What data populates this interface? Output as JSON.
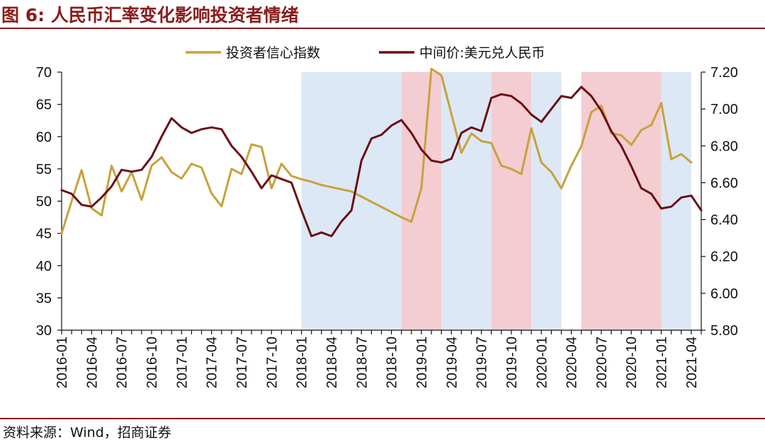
{
  "header": {
    "title": "图 6:  人民币汇率变化影响投资者情绪"
  },
  "footer": {
    "source": "资料来源：Wind，招商证券"
  },
  "chart_data": {
    "type": "line",
    "left_axis": {
      "ylim": [
        30,
        70
      ],
      "ticks": [
        "30",
        "35",
        "40",
        "45",
        "50",
        "55",
        "60",
        "65",
        "70"
      ]
    },
    "right_axis": {
      "ylim": [
        5.8,
        7.2
      ],
      "ticks": [
        "5.80",
        "6.00",
        "6.20",
        "6.40",
        "6.60",
        "6.80",
        "7.00",
        "7.20"
      ]
    },
    "x_axis": {
      "range": [
        "2016-01",
        "2021-05"
      ],
      "tick_labels": [
        "2016-01",
        "2016-04",
        "2016-07",
        "2016-10",
        "2017-01",
        "2017-04",
        "2017-07",
        "2017-10",
        "2018-01",
        "2018-04",
        "2018-07",
        "2018-10",
        "2019-01",
        "2019-04",
        "2019-07",
        "2019-10",
        "2020-01",
        "2020-04",
        "2020-07",
        "2020-10",
        "2021-01",
        "2021-04"
      ]
    },
    "legend": {
      "placement": "top-center"
    },
    "colors": {
      "sentiment": "#C9A13C",
      "fx": "#6B0E14",
      "blue_band": "#DCE8F5",
      "red_band": "#F3CDD2",
      "axis": "#111111"
    },
    "shaded_periods": [
      {
        "start": "2018-01",
        "end": "2018-11",
        "color": "blue"
      },
      {
        "start": "2018-11",
        "end": "2019-03",
        "color": "red"
      },
      {
        "start": "2019-03",
        "end": "2019-08",
        "color": "blue"
      },
      {
        "start": "2019-08",
        "end": "2019-12",
        "color": "red"
      },
      {
        "start": "2019-12",
        "end": "2020-03",
        "color": "blue"
      },
      {
        "start": "2020-05",
        "end": "2021-01",
        "color": "red"
      },
      {
        "start": "2021-01",
        "end": "2021-04",
        "color": "blue"
      }
    ],
    "series": [
      {
        "name": "投资者信心指数",
        "axis": "left",
        "points": [
          [
            "2016-01",
            45
          ],
          [
            "2016-02",
            50
          ],
          [
            "2016-03",
            54.8
          ],
          [
            "2016-04",
            48.9
          ],
          [
            "2016-05",
            47.8
          ],
          [
            "2016-06",
            55.5
          ],
          [
            "2016-07",
            51.5
          ],
          [
            "2016-08",
            54.5
          ],
          [
            "2016-09",
            50.2
          ],
          [
            "2016-10",
            55.5
          ],
          [
            "2016-11",
            56.8
          ],
          [
            "2016-12",
            54.5
          ],
          [
            "2017-01",
            53.5
          ],
          [
            "2017-02",
            55.8
          ],
          [
            "2017-03",
            55.2
          ],
          [
            "2017-04",
            51.2
          ],
          [
            "2017-05",
            49.2
          ],
          [
            "2017-06",
            55
          ],
          [
            "2017-07",
            54.2
          ],
          [
            "2017-08",
            58.8
          ],
          [
            "2017-09",
            58.4
          ],
          [
            "2017-10",
            52
          ],
          [
            "2017-11",
            55.8
          ],
          [
            "2017-12",
            53.9
          ],
          [
            "2018-01",
            53.4
          ],
          [
            "2018-02",
            53
          ],
          [
            "2018-03",
            52.5
          ],
          [
            "2018-06",
            51.5
          ],
          [
            "2018-11",
            47.5
          ],
          [
            "2018-12",
            46.8
          ],
          [
            "2019-01",
            52
          ],
          [
            "2019-02",
            70.5
          ],
          [
            "2019-03",
            69.5
          ],
          [
            "2019-05",
            57.5
          ],
          [
            "2019-06",
            60.5
          ],
          [
            "2019-07",
            59.3
          ],
          [
            "2019-08",
            59
          ],
          [
            "2019-09",
            55.5
          ],
          [
            "2019-10",
            55
          ],
          [
            "2019-11",
            54.2
          ],
          [
            "2019-12",
            61.3
          ],
          [
            "2020-01",
            56
          ],
          [
            "2020-02",
            54.5
          ],
          [
            "2020-03",
            52
          ],
          [
            "2020-04",
            55.5
          ],
          [
            "2020-05",
            58.5
          ],
          [
            "2020-06",
            63.8
          ],
          [
            "2020-07",
            64.8
          ],
          [
            "2020-08",
            60.5
          ],
          [
            "2020-09",
            60.2
          ],
          [
            "2020-10",
            58.7
          ],
          [
            "2020-11",
            61
          ],
          [
            "2020-12",
            61.8
          ],
          [
            "2021-01",
            65.2
          ],
          [
            "2021-02",
            56.5
          ],
          [
            "2021-03",
            57.3
          ],
          [
            "2021-04",
            56
          ]
        ]
      },
      {
        "name": "中间价:美元兑人民币",
        "axis": "right",
        "points": [
          [
            "2016-01",
            6.56
          ],
          [
            "2016-02",
            6.54
          ],
          [
            "2016-03",
            6.48
          ],
          [
            "2016-04",
            6.47
          ],
          [
            "2016-05",
            6.52
          ],
          [
            "2016-06",
            6.58
          ],
          [
            "2016-07",
            6.67
          ],
          [
            "2016-08",
            6.66
          ],
          [
            "2016-09",
            6.67
          ],
          [
            "2016-10",
            6.74
          ],
          [
            "2016-11",
            6.85
          ],
          [
            "2016-12",
            6.95
          ],
          [
            "2017-01",
            6.9
          ],
          [
            "2017-02",
            6.87
          ],
          [
            "2017-03",
            6.89
          ],
          [
            "2017-04",
            6.9
          ],
          [
            "2017-05",
            6.89
          ],
          [
            "2017-06",
            6.8
          ],
          [
            "2017-07",
            6.74
          ],
          [
            "2017-08",
            6.66
          ],
          [
            "2017-09",
            6.57
          ],
          [
            "2017-10",
            6.64
          ],
          [
            "2017-11",
            6.62
          ],
          [
            "2017-12",
            6.6
          ],
          [
            "2018-01",
            6.45
          ],
          [
            "2018-02",
            6.31
          ],
          [
            "2018-03",
            6.33
          ],
          [
            "2018-04",
            6.31
          ],
          [
            "2018-05",
            6.39
          ],
          [
            "2018-06",
            6.45
          ],
          [
            "2018-07",
            6.72
          ],
          [
            "2018-08",
            6.84
          ],
          [
            "2018-09",
            6.86
          ],
          [
            "2018-10",
            6.91
          ],
          [
            "2018-11",
            6.94
          ],
          [
            "2018-12",
            6.87
          ],
          [
            "2019-01",
            6.78
          ],
          [
            "2019-02",
            6.72
          ],
          [
            "2019-03",
            6.71
          ],
          [
            "2019-04",
            6.73
          ],
          [
            "2019-05",
            6.87
          ],
          [
            "2019-06",
            6.9
          ],
          [
            "2019-07",
            6.88
          ],
          [
            "2019-08",
            7.06
          ],
          [
            "2019-09",
            7.08
          ],
          [
            "2019-10",
            7.07
          ],
          [
            "2019-11",
            7.03
          ],
          [
            "2019-12",
            6.97
          ],
          [
            "2020-01",
            6.93
          ],
          [
            "2020-02",
            7.0
          ],
          [
            "2020-03",
            7.07
          ],
          [
            "2020-04",
            7.06
          ],
          [
            "2020-05",
            7.12
          ],
          [
            "2020-06",
            7.07
          ],
          [
            "2020-07",
            6.99
          ],
          [
            "2020-08",
            6.88
          ],
          [
            "2020-09",
            6.8
          ],
          [
            "2020-10",
            6.69
          ],
          [
            "2020-11",
            6.57
          ],
          [
            "2020-12",
            6.54
          ],
          [
            "2021-01",
            6.46
          ],
          [
            "2021-02",
            6.47
          ],
          [
            "2021-03",
            6.52
          ],
          [
            "2021-04",
            6.53
          ],
          [
            "2021-05",
            6.45
          ]
        ]
      }
    ]
  }
}
